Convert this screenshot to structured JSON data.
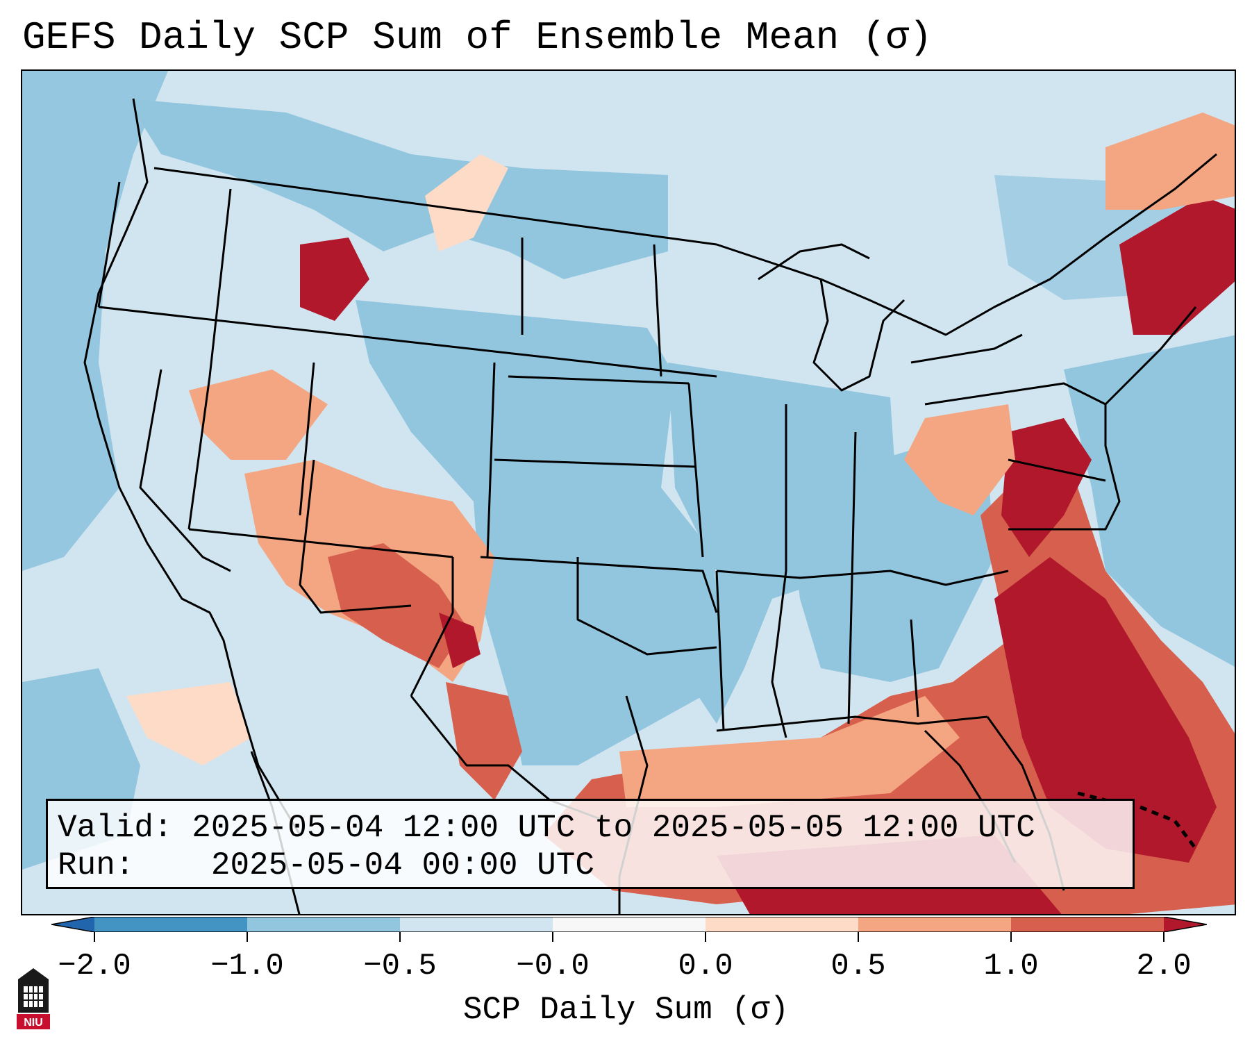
{
  "title": "GEFS Daily SCP Sum of Ensemble Mean (σ)",
  "info": {
    "valid_label": "Valid:",
    "valid_value": "2025-05-04 12:00 UTC to 2025-05-05 12:00 UTC",
    "run_label": "Run:",
    "run_value": "2025-05-04 00:00 UTC"
  },
  "colorbar": {
    "label": "SCP Daily Sum (σ)",
    "tick_labels": [
      "−2.0",
      "−1.0",
      "−0.5",
      "−0.0",
      "0.0",
      "0.5",
      "1.0",
      "2.0"
    ],
    "bins": [
      {
        "from": -2.0,
        "to": -1.0,
        "color": "#4393c3"
      },
      {
        "from": -1.0,
        "to": -0.5,
        "color": "#92c5de"
      },
      {
        "from": -0.5,
        "to": -0.0,
        "color": "#d1e5f0"
      },
      {
        "from": -0.0,
        "to": 0.0,
        "color": "#f7f7f7"
      },
      {
        "from": 0.0,
        "to": 0.5,
        "color": "#fddbc7"
      },
      {
        "from": 0.5,
        "to": 1.0,
        "color": "#f4a582"
      },
      {
        "from": 1.0,
        "to": 2.0,
        "color": "#d6604d"
      }
    ],
    "under_color": "#2166ac",
    "over_color": "#b2182b"
  },
  "logo": {
    "text": "NIU"
  }
}
